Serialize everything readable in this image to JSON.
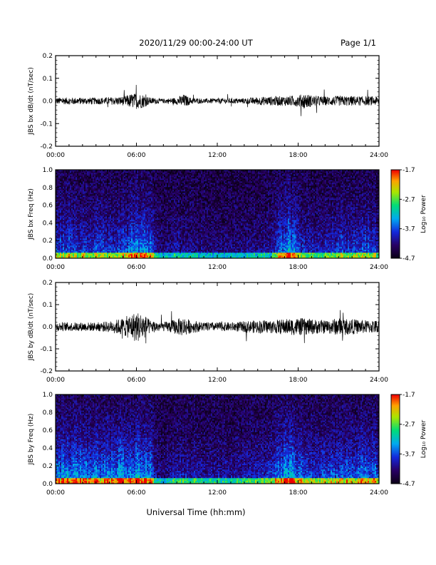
{
  "header": {
    "date_range": "2020/11/29  00:00-24:00 UT",
    "page": "Page 1/1"
  },
  "footer": {
    "xlabel": "Universal Time (hh:mm)"
  },
  "colorbar": {
    "label": "Log₁₀ Power",
    "ticks": [
      "-1.7",
      "-2.7",
      "-3.7",
      "-4.7"
    ],
    "tick_values": [
      -1.7,
      -2.7,
      -3.7,
      -4.7
    ],
    "range": [
      -4.7,
      -1.7
    ]
  },
  "chart_data": [
    {
      "type": "line",
      "ylabel": "JBS bx dB/dt (nT/sec)",
      "xlim": [
        0,
        24
      ],
      "ylim": [
        -0.2,
        0.2
      ],
      "x_ticks": [
        "00:00",
        "06:00",
        "12:00",
        "18:00",
        "24:00"
      ],
      "y_ticks": [
        "0.2",
        "0.1",
        "0.0",
        "-0.1",
        "-0.2"
      ],
      "y_tick_values": [
        0.2,
        0.1,
        0.0,
        -0.1,
        -0.2
      ],
      "envelope": {
        "hours": [
          0,
          1,
          2,
          3,
          4,
          5,
          5.5,
          6,
          6.5,
          7,
          8,
          9,
          9.5,
          10,
          11,
          12,
          13,
          14,
          15,
          16,
          17,
          18,
          18.5,
          19,
          20,
          21,
          22,
          23,
          24
        ],
        "amplitude": [
          0.015,
          0.015,
          0.015,
          0.015,
          0.016,
          0.02,
          0.03,
          0.035,
          0.03,
          0.015,
          0.01,
          0.015,
          0.03,
          0.015,
          0.01,
          0.012,
          0.012,
          0.012,
          0.018,
          0.02,
          0.022,
          0.025,
          0.035,
          0.025,
          0.02,
          0.022,
          0.022,
          0.02,
          0.02
        ]
      }
    },
    {
      "type": "heatmap",
      "ylabel": "JBS bx Freq (Hz)",
      "xlim": [
        0,
        24
      ],
      "ylim": [
        0,
        1
      ],
      "x_ticks": [
        "00:00",
        "06:00",
        "12:00",
        "18:00",
        "24:00"
      ],
      "y_ticks": [
        "1.0",
        "0.8",
        "0.6",
        "0.4",
        "0.2",
        "0.0"
      ],
      "y_tick_values": [
        1.0,
        0.8,
        0.6,
        0.4,
        0.2,
        0.0
      ],
      "colorbar_range": [
        -4.7,
        -1.7
      ],
      "activity": {
        "hours": [
          0,
          1,
          2,
          3,
          4,
          5,
          6,
          6.5,
          7,
          7.5,
          8,
          9,
          10,
          11,
          12,
          13,
          14,
          15,
          16,
          17,
          17.5,
          18,
          19,
          20,
          21,
          22,
          23,
          24
        ],
        "level": [
          0.55,
          0.55,
          0.5,
          0.5,
          0.5,
          0.55,
          0.7,
          0.75,
          0.7,
          0.25,
          0.15,
          0.3,
          0.25,
          0.2,
          0.2,
          0.2,
          0.25,
          0.25,
          0.3,
          0.75,
          0.8,
          0.45,
          0.35,
          0.35,
          0.45,
          0.5,
          0.5,
          0.45
        ]
      }
    },
    {
      "type": "line",
      "ylabel": "JBS by dB/dt (nT/sec)",
      "xlim": [
        0,
        24
      ],
      "ylim": [
        -0.2,
        0.2
      ],
      "x_ticks": [
        "00:00",
        "06:00",
        "12:00",
        "18:00",
        "24:00"
      ],
      "y_ticks": [
        "0.2",
        "0.1",
        "0.0",
        "-0.1",
        "-0.2"
      ],
      "y_tick_values": [
        0.2,
        0.1,
        0.0,
        -0.1,
        -0.2
      ],
      "envelope": {
        "hours": [
          0,
          1,
          2,
          3,
          4,
          5,
          5.5,
          6,
          6.5,
          7,
          8,
          9,
          9.5,
          10,
          11,
          12,
          13,
          14,
          15,
          16,
          17,
          18,
          19,
          20,
          21,
          22,
          23,
          24
        ],
        "amplitude": [
          0.02,
          0.02,
          0.02,
          0.02,
          0.025,
          0.04,
          0.055,
          0.07,
          0.06,
          0.03,
          0.02,
          0.035,
          0.045,
          0.03,
          0.02,
          0.02,
          0.02,
          0.025,
          0.03,
          0.03,
          0.035,
          0.04,
          0.035,
          0.03,
          0.04,
          0.035,
          0.03,
          0.03
        ]
      }
    },
    {
      "type": "heatmap",
      "ylabel": "JBS by Freq (Hz)",
      "xlim": [
        0,
        24
      ],
      "ylim": [
        0,
        1
      ],
      "x_ticks": [
        "00:00",
        "06:00",
        "12:00",
        "18:00",
        "24:00"
      ],
      "y_ticks": [
        "1.0",
        "0.8",
        "0.6",
        "0.4",
        "0.2",
        "0.0"
      ],
      "y_tick_values": [
        1.0,
        0.8,
        0.6,
        0.4,
        0.2,
        0.0
      ],
      "colorbar_range": [
        -4.7,
        -1.7
      ],
      "activity": {
        "hours": [
          0,
          1,
          2,
          3,
          4,
          5,
          6,
          6.5,
          7,
          7.5,
          8,
          9,
          10,
          11,
          12,
          13,
          14,
          15,
          16,
          17,
          17.5,
          18,
          19,
          20,
          21,
          22,
          23,
          24
        ],
        "level": [
          0.75,
          0.75,
          0.7,
          0.7,
          0.7,
          0.75,
          0.85,
          0.85,
          0.8,
          0.3,
          0.2,
          0.4,
          0.35,
          0.3,
          0.3,
          0.3,
          0.35,
          0.4,
          0.45,
          0.85,
          0.9,
          0.6,
          0.5,
          0.5,
          0.6,
          0.65,
          0.65,
          0.6
        ]
      }
    }
  ]
}
